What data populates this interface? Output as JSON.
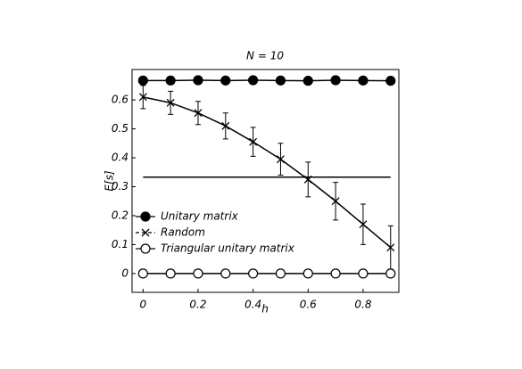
{
  "chart_data": {
    "type": "line",
    "title": "N = 10",
    "x_label": "h",
    "y_label": "E[s]",
    "x": [
      0,
      0.1,
      0.2,
      0.3,
      0.4,
      0.5,
      0.6,
      0.7,
      0.8,
      0.9
    ],
    "series": [
      {
        "name": "Unitary matrix",
        "color": "#000000",
        "marker": "filled-circle",
        "values": [
          0.667,
          0.667,
          0.668,
          0.667,
          0.668,
          0.667,
          0.666,
          0.668,
          0.667,
          0.666
        ]
      },
      {
        "name": "Random",
        "color": "#000000",
        "marker": "x",
        "values": [
          0.61,
          0.59,
          0.555,
          0.51,
          0.455,
          0.395,
          0.325,
          0.25,
          0.17,
          0.09
        ],
        "errors": [
          0.04,
          0.04,
          0.04,
          0.045,
          0.05,
          0.055,
          0.06,
          0.065,
          0.07,
          0.075
        ]
      },
      {
        "name": "Triangular unitary matrix",
        "color": "#000000",
        "marker": "open-circle",
        "values": [
          0,
          0,
          0,
          0,
          0,
          0,
          0,
          0,
          0,
          0
        ]
      }
    ],
    "reference_line": {
      "y": 0.333,
      "x": [
        0,
        0.9
      ]
    },
    "xlim": [
      -0.04,
      0.93
    ],
    "ylim": [
      -0.065,
      0.705
    ],
    "xticks": [
      0,
      0.2,
      0.4,
      0.6,
      0.8
    ],
    "yticks": [
      0,
      0.1,
      0.2,
      0.3,
      0.4,
      0.5,
      0.6
    ],
    "legend": "lower-left"
  }
}
